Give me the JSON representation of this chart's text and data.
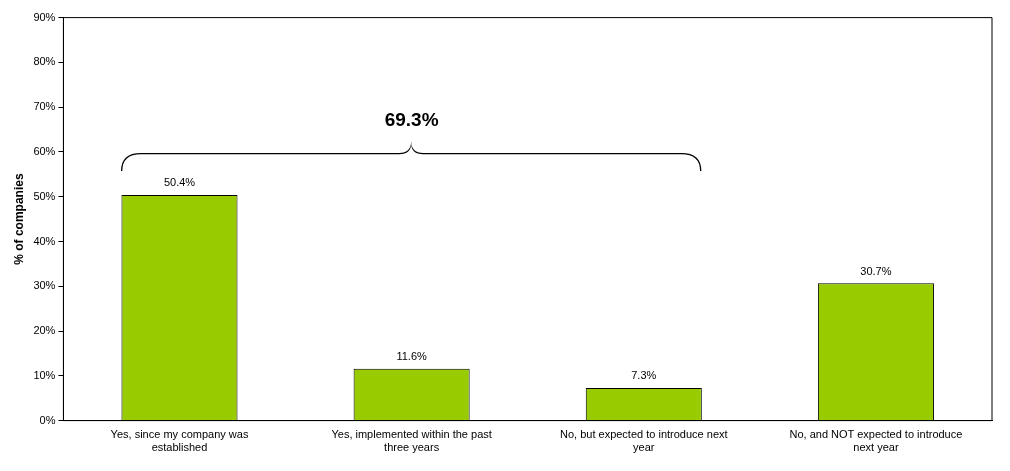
{
  "chart_data": {
    "type": "bar",
    "ylabel": "% of companies",
    "categories": [
      "Yes, since my company was established",
      "Yes, implemented within the past three years",
      "No, but expected to introduce next year",
      "No, and NOT expected to introduce next year"
    ],
    "values": [
      50.4,
      11.6,
      7.3,
      30.7
    ],
    "value_labels": [
      "50.4%",
      "11.6%",
      "7.3%",
      "30.7%"
    ],
    "color": "#99cc00",
    "ylim": [
      0,
      90
    ],
    "yticks": [
      {
        "value": 0,
        "label": "0%"
      },
      {
        "value": 10,
        "label": "10%"
      },
      {
        "value": 20,
        "label": "20%"
      },
      {
        "value": 30,
        "label": "30%"
      },
      {
        "value": 40,
        "label": "40%"
      },
      {
        "value": 50,
        "label": "50%"
      },
      {
        "value": 60,
        "label": "60%"
      },
      {
        "value": 70,
        "label": "70%"
      },
      {
        "value": 80,
        "label": "80%"
      },
      {
        "value": 90,
        "label": "90%"
      }
    ],
    "grid": false,
    "annotations": [
      "69.3%"
    ]
  }
}
